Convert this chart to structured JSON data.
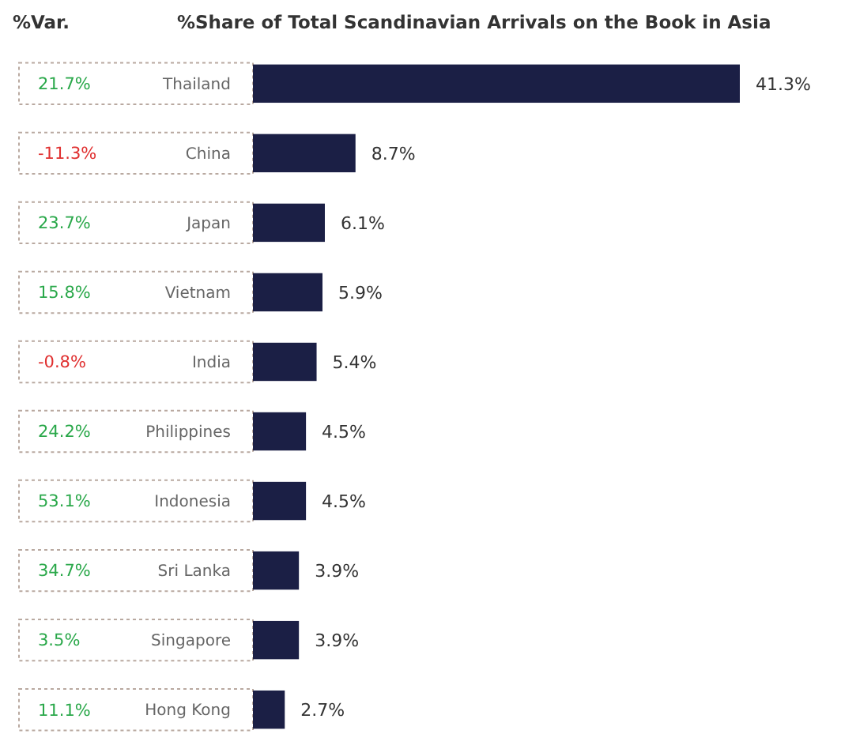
{
  "chart_data": {
    "type": "bar",
    "orientation": "horizontal",
    "title": "%Share of Total Scandinavian Arrivals on the Book in Asia",
    "categories": [
      "Thailand",
      "China",
      "Japan",
      "Vietnam",
      "India",
      "Philippines",
      "Indonesia",
      "Sri Lanka",
      "Singapore",
      "Hong Kong"
    ],
    "values": [
      41.3,
      8.7,
      6.1,
      5.9,
      5.4,
      4.5,
      4.5,
      3.9,
      3.9,
      2.7
    ],
    "value_labels": [
      "41.3%",
      "8.7%",
      "6.1%",
      "5.9%",
      "5.4%",
      "4.5%",
      "4.5%",
      "3.9%",
      "3.9%",
      "2.7%"
    ],
    "color": "#1b1f45",
    "annotations": [
      "%Var.",
      "21.7%",
      "-11.3%",
      "23.7%",
      "15.8%",
      "-0.8%",
      "24.2%",
      "53.1%",
      "34.7%",
      "3.5%",
      "11.1%"
    ]
  }
}
